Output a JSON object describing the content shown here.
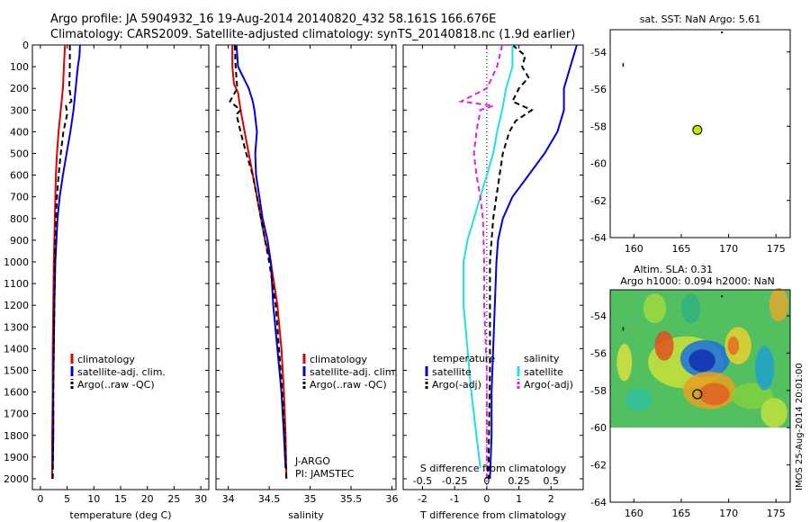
{
  "header": {
    "line1": "Argo profile: JA 5904932_16 19-Aug-2014 20140820_432 58.161S 166.676E",
    "line2": "Climatology: CARS2009. Satellite-adjusted climatology: synTS_20140818.nc (1.9d earlier)"
  },
  "colors": {
    "climatology": "#e00000",
    "satellite": "#0000dd",
    "argo": "#000000",
    "satellite_salinity": "#22e0e0",
    "argo_salinity": "#e020e0",
    "marker": "#c8e400"
  },
  "chart_data": [
    {
      "id": "temperature",
      "type": "line",
      "xlabel": "temperature (deg C)",
      "xlim": [
        -1.5,
        31.5
      ],
      "ylim": [
        2050,
        0
      ],
      "xticks": [
        0,
        5,
        10,
        15,
        20,
        25,
        30
      ],
      "yticks": [
        0,
        100,
        200,
        300,
        400,
        500,
        600,
        700,
        800,
        900,
        1000,
        1100,
        1200,
        1300,
        1400,
        1500,
        1600,
        1700,
        1800,
        1900,
        2000
      ],
      "legend": [
        "climatology",
        "satellite-adj. clim.",
        "Argo(..raw -QC)"
      ],
      "series": [
        {
          "name": "climatology",
          "style": "solid",
          "color": "climatology",
          "depth": [
            0,
            100,
            200,
            300,
            400,
            500,
            600,
            700,
            800,
            900,
            1000,
            1200,
            1400,
            1600,
            1800,
            2000
          ],
          "values": [
            4.6,
            4.4,
            4.2,
            3.8,
            3.4,
            3.1,
            2.9,
            2.8,
            2.7,
            2.6,
            2.5,
            2.4,
            2.3,
            2.3,
            2.2,
            2.2
          ]
        },
        {
          "name": "satellite-adj. clim.",
          "style": "solid",
          "color": "satellite",
          "depth": [
            0,
            50,
            100,
            200,
            300,
            400,
            500,
            600,
            700,
            800,
            900,
            1000,
            1200,
            1400,
            1600,
            1800,
            1950
          ],
          "values": [
            7.4,
            7.3,
            7.0,
            6.6,
            6.2,
            5.6,
            4.9,
            4.2,
            3.6,
            3.2,
            3.0,
            2.8,
            2.6,
            2.5,
            2.4,
            2.4,
            2.3
          ]
        },
        {
          "name": "Argo(..raw -QC)",
          "style": "dashed",
          "color": "argo",
          "depth": [
            0,
            100,
            200,
            260,
            280,
            320,
            400,
            500,
            600,
            700,
            800,
            900,
            1000,
            1200,
            1400,
            1600,
            1800,
            2000
          ],
          "values": [
            5.5,
            5.5,
            5.4,
            5.8,
            4.8,
            5.0,
            4.3,
            3.8,
            3.4,
            3.1,
            2.9,
            2.8,
            2.7,
            2.6,
            2.5,
            2.4,
            2.4,
            2.3
          ]
        }
      ]
    },
    {
      "id": "salinity",
      "type": "line",
      "xlabel": "salinity",
      "xlim": [
        33.85,
        36.05
      ],
      "ylim": [
        2050,
        0
      ],
      "xticks": [
        34,
        34.5,
        35,
        35.5,
        36
      ],
      "legend": [
        "climatology",
        "satellite-adj. clim.",
        "Argo(..raw -QC)"
      ],
      "annotation": [
        "J-ARGO",
        "PI: JAMSTEC"
      ],
      "series": [
        {
          "name": "climatology",
          "style": "solid",
          "color": "climatology",
          "depth": [
            0,
            100,
            180,
            220,
            300,
            400,
            500,
            600,
            700,
            800,
            900,
            1000,
            1200,
            1400,
            1600,
            1800,
            2000
          ],
          "values": [
            34.05,
            34.05,
            34.07,
            34.12,
            34.15,
            34.2,
            34.25,
            34.3,
            34.35,
            34.4,
            34.45,
            34.52,
            34.6,
            34.65,
            34.68,
            34.7,
            34.71
          ]
        },
        {
          "name": "satellite-adj. clim.",
          "style": "solid",
          "color": "satellite",
          "depth": [
            0,
            100,
            200,
            260,
            300,
            400,
            500,
            600,
            700,
            800,
            900,
            1000,
            1200,
            1400,
            1600,
            1800,
            1950
          ],
          "values": [
            34.1,
            34.12,
            34.25,
            34.3,
            34.32,
            34.35,
            34.33,
            34.34,
            34.38,
            34.42,
            34.48,
            34.52,
            34.55,
            34.6,
            34.65,
            34.68,
            34.7
          ]
        },
        {
          "name": "Argo(..raw -QC)",
          "style": "dashed",
          "color": "argo",
          "depth": [
            0,
            100,
            200,
            260,
            300,
            320,
            400,
            500,
            600,
            700,
            800,
            900,
            1000,
            1200,
            1400,
            1600,
            1800,
            2000
          ],
          "values": [
            34.08,
            34.09,
            34.11,
            34.02,
            34.15,
            34.1,
            34.15,
            34.22,
            34.3,
            34.35,
            34.4,
            34.45,
            34.5,
            34.58,
            34.62,
            34.66,
            34.69,
            34.71
          ]
        }
      ]
    },
    {
      "id": "difference",
      "type": "line",
      "xlabel": "T difference from climatology",
      "xlabel2": "S difference from climatology",
      "xlim": [
        -2.6,
        3.0
      ],
      "ylim": [
        2050,
        0
      ],
      "xticks": [
        -2,
        -1,
        0,
        1,
        2
      ],
      "xticks2": [
        -0.5,
        -0.25,
        0,
        0.25,
        0.5
      ],
      "legend_left_title": "temperature",
      "legend_right_title": "salinity",
      "legend": [
        "satellite",
        "Argo(-adj)",
        "satellite",
        "Argo(-adj)"
      ],
      "series": [
        {
          "name": "T satellite",
          "style": "solid",
          "color": "satellite",
          "depth": [
            0,
            100,
            200,
            300,
            400,
            500,
            600,
            700,
            800,
            900,
            1000,
            1200,
            1400,
            1600,
            1800,
            2000
          ],
          "values": [
            2.8,
            2.6,
            2.4,
            2.4,
            2.2,
            1.8,
            1.3,
            0.8,
            0.5,
            0.35,
            0.3,
            0.25,
            0.2,
            0.15,
            0.15,
            0.1
          ]
        },
        {
          "name": "T Argo(-adj)",
          "style": "dashed",
          "color": "argo",
          "depth": [
            0,
            50,
            100,
            150,
            200,
            260,
            300,
            350,
            400,
            500,
            600,
            800,
            1000,
            1500,
            2000
          ],
          "values": [
            0.8,
            1.2,
            1.1,
            1.3,
            1.0,
            0.8,
            1.4,
            0.9,
            0.7,
            0.5,
            0.4,
            0.2,
            0.1,
            0.1,
            0.05
          ]
        },
        {
          "name": "S satellite",
          "style": "solid",
          "color": "satellite_salinity",
          "depth": [
            0,
            100,
            200,
            300,
            400,
            500,
            600,
            700,
            800,
            900,
            1000,
            1200,
            1400,
            1600,
            1800,
            1950
          ],
          "values": [
            0.2,
            0.2,
            0.15,
            0.12,
            0.08,
            0.05,
            0.0,
            -0.05,
            -0.1,
            -0.15,
            -0.18,
            -0.18,
            -0.15,
            -0.12,
            -0.08,
            -0.05
          ]
        },
        {
          "name": "S Argo(-adj)",
          "style": "dashed",
          "color": "argo_salinity",
          "depth": [
            0,
            100,
            200,
            260,
            280,
            300,
            400,
            500,
            600,
            700,
            800,
            1000,
            1200,
            1500,
            1800,
            2000
          ],
          "values": [
            0.12,
            0.08,
            0.0,
            -0.2,
            0.05,
            -0.05,
            -0.08,
            -0.1,
            -0.08,
            -0.05,
            -0.03,
            -0.02,
            -0.02,
            0.0,
            0.0,
            0.0
          ]
        }
      ]
    },
    {
      "id": "sst-map",
      "type": "scatter",
      "title": "sat. SST: NaN Argo: 5.61",
      "xlim": [
        157.5,
        176.5
      ],
      "ylim": [
        -64,
        -52.8
      ],
      "xticks": [
        160,
        165,
        170,
        175
      ],
      "yticks": [
        -54,
        -56,
        -58,
        -60,
        -62,
        -64
      ],
      "points": [
        {
          "x": 166.7,
          "y": -58.2
        }
      ]
    },
    {
      "id": "sla-map",
      "type": "heatmap",
      "title1": "Altim. SLA: 0.31",
      "title2": "Argo h1000: 0.094 h2000: NaN",
      "xlim": [
        157.5,
        176.5
      ],
      "ylim": [
        -64,
        -52.6
      ],
      "xticks": [
        160,
        165,
        170,
        175
      ],
      "yticks": [
        -54,
        -56,
        -58,
        -60,
        -62,
        -64
      ],
      "points": [
        {
          "x": 166.7,
          "y": -58.2
        }
      ],
      "data_extent_lat": [
        -60,
        -52.6
      ],
      "vertical_label": "IMOS 25-Aug-2014 20:01:00"
    }
  ]
}
